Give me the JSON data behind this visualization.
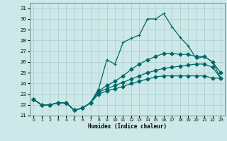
{
  "xlabel": "Humidex (Indice chaleur)",
  "xlim": [
    -0.5,
    23.5
  ],
  "ylim": [
    21,
    31.5
  ],
  "yticks": [
    21,
    22,
    23,
    24,
    25,
    26,
    27,
    28,
    29,
    30,
    31
  ],
  "xticks": [
    0,
    1,
    2,
    3,
    4,
    5,
    6,
    7,
    8,
    9,
    10,
    11,
    12,
    13,
    14,
    15,
    16,
    17,
    18,
    19,
    20,
    21,
    22,
    23
  ],
  "bg_color": "#cce8e8",
  "grid_color": "#aacccc",
  "line_color": "#006666",
  "line1": [
    22.5,
    22.0,
    22.0,
    22.2,
    22.2,
    21.5,
    21.7,
    22.2,
    23.5,
    26.2,
    25.8,
    27.8,
    28.2,
    28.5,
    30.0,
    30.0,
    30.5,
    29.3,
    28.3,
    27.5,
    26.3,
    26.5,
    26.0,
    24.5
  ],
  "line2": [
    22.5,
    22.0,
    22.0,
    22.2,
    22.2,
    21.5,
    21.7,
    22.2,
    23.3,
    23.8,
    24.2,
    24.7,
    25.3,
    25.8,
    26.2,
    26.5,
    26.8,
    26.8,
    26.7,
    26.7,
    26.5,
    26.5,
    26.0,
    25.0
  ],
  "line3": [
    22.5,
    22.0,
    22.0,
    22.2,
    22.2,
    21.5,
    21.7,
    22.2,
    23.2,
    23.5,
    23.8,
    24.1,
    24.4,
    24.7,
    25.0,
    25.2,
    25.4,
    25.5,
    25.6,
    25.7,
    25.8,
    25.8,
    25.5,
    24.5
  ],
  "line4": [
    22.5,
    22.0,
    22.0,
    22.2,
    22.2,
    21.5,
    21.7,
    22.2,
    23.0,
    23.3,
    23.5,
    23.7,
    24.0,
    24.2,
    24.4,
    24.6,
    24.7,
    24.7,
    24.7,
    24.7,
    24.7,
    24.7,
    24.5,
    24.5
  ]
}
